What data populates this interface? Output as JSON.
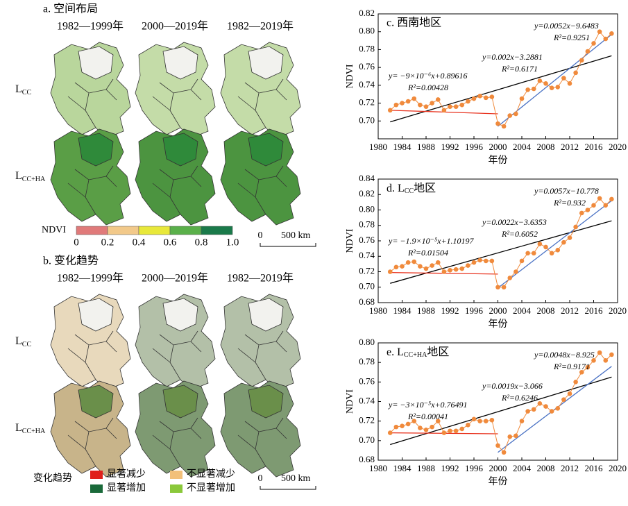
{
  "panel_a": {
    "title": "a. 空间布局",
    "columns": [
      "1982—1999年",
      "2000—2019年",
      "1982—2019年"
    ],
    "rows": [
      {
        "text": "L",
        "sub": "CC"
      },
      {
        "text": "L",
        "sub": "CC+HA"
      }
    ],
    "colorbar": {
      "label": "NDVI",
      "colors": [
        "#e07a7a",
        "#f2c98a",
        "#e8e83a",
        "#5ab04a",
        "#1a7a4a"
      ],
      "ticks": [
        0,
        0.2,
        0.4,
        0.6,
        0.8,
        {
          "value": 1,
          "label": "1.0"
        }
      ]
    },
    "scalebar": {
      "start": 0,
      "label": "500 km"
    }
  },
  "panel_b": {
    "title": "b. 变化趋势",
    "columns": [
      "1982—1999年",
      "2000—2019年",
      "1982—2019年"
    ],
    "rows": [
      {
        "text": "L",
        "sub": "CC"
      },
      {
        "text": "L",
        "sub": "CC+HA"
      }
    ],
    "legend": {
      "title": "变化趋势",
      "items": [
        {
          "label": "显著减少",
          "color": "#e0201a"
        },
        {
          "label": "不显著减少",
          "color": "#f2c07a"
        },
        {
          "label": "显著增加",
          "color": "#1a6a3a"
        },
        {
          "label": "不显著增加",
          "color": "#8ac83a"
        }
      ]
    },
    "scalebar": {
      "start": 0,
      "label": "500 km"
    }
  },
  "chart_data": [
    {
      "type": "line",
      "title": "c. 西南地区",
      "xlabel": "年份",
      "ylabel": "NDVI",
      "x": [
        1982,
        1983,
        1984,
        1985,
        1986,
        1987,
        1988,
        1989,
        1990,
        1991,
        1992,
        1993,
        1994,
        1995,
        1996,
        1997,
        1998,
        1999,
        2000,
        2001,
        2002,
        2003,
        2004,
        2005,
        2006,
        2007,
        2008,
        2009,
        2010,
        2011,
        2012,
        2013,
        2014,
        2015,
        2016,
        2017,
        2018,
        2019
      ],
      "xlim": [
        1980,
        2020
      ],
      "xticks": [
        1980,
        1984,
        1988,
        1992,
        1996,
        2000,
        2004,
        2008,
        2012,
        2016,
        2020
      ],
      "ylim": [
        0.68,
        0.82
      ],
      "yticks": [
        {
          "value": 0.7,
          "label": "0.70"
        },
        0.72,
        0.74,
        0.76,
        0.78,
        {
          "value": 0.8,
          "label": "0.80"
        },
        0.82
      ],
      "series": [
        {
          "color": "#f08a3c",
          "values": [
            0.712,
            0.718,
            0.72,
            0.722,
            0.725,
            0.718,
            0.716,
            0.72,
            0.724,
            0.712,
            0.716,
            0.716,
            0.718,
            0.722,
            0.725,
            0.728,
            0.726,
            0.727,
            0.697,
            0.694,
            0.706,
            0.708,
            0.725,
            0.735,
            0.736,
            0.745,
            0.742,
            0.737,
            0.738,
            0.748,
            0.742,
            0.754,
            0.768,
            0.778,
            0.787,
            0.8,
            0.792,
            0.798
          ]
        }
      ],
      "trends": [
        {
          "color": "#000000",
          "x": [
            1982,
            2019
          ],
          "values": [
            0.699,
            0.773
          ]
        },
        {
          "color": "#e8321e",
          "x": [
            1982,
            2000
          ],
          "values": [
            0.712,
            0.708
          ]
        },
        {
          "color": "#4a72c4",
          "x": [
            2000,
            2019
          ],
          "values": [
            0.694,
            0.797
          ]
        }
      ],
      "annotations": [
        {
          "color": "#e8321e",
          "lines": [
            "y= −9×10⁻⁶x+0.89616",
            "R²=0.00428"
          ]
        },
        {
          "color": "#000000",
          "lines": [
            "y=0.002x−3.2881",
            "R²=0.6171"
          ]
        },
        {
          "color": "#4a72c4",
          "lines": [
            "y=0.0052x−9.6483",
            "R²=0.9251"
          ]
        }
      ]
    },
    {
      "type": "line",
      "title": {
        "text": "d. L",
        "sub": "CC",
        "tail": "地区"
      },
      "xlabel": "年份",
      "ylabel": "NDVI",
      "x": [
        1982,
        1983,
        1984,
        1985,
        1986,
        1987,
        1988,
        1989,
        1990,
        1991,
        1992,
        1993,
        1994,
        1995,
        1996,
        1997,
        1998,
        1999,
        2000,
        2001,
        2002,
        2003,
        2004,
        2005,
        2006,
        2007,
        2008,
        2009,
        2010,
        2011,
        2012,
        2013,
        2014,
        2015,
        2016,
        2017,
        2018,
        2019
      ],
      "xlim": [
        1980,
        2020
      ],
      "xticks": [
        1980,
        1984,
        1988,
        1992,
        1996,
        2000,
        2004,
        2008,
        2012,
        2016,
        2020
      ],
      "ylim": [
        0.68,
        0.84
      ],
      "yticks": [
        0.68,
        {
          "value": 0.7,
          "label": "0.70"
        },
        0.72,
        0.74,
        0.76,
        0.78,
        {
          "value": 0.8,
          "label": "0.80"
        },
        0.82,
        0.84
      ],
      "series": [
        {
          "color": "#f08a3c",
          "values": [
            0.72,
            0.726,
            0.727,
            0.732,
            0.733,
            0.727,
            0.724,
            0.728,
            0.732,
            0.72,
            0.722,
            0.723,
            0.724,
            0.728,
            0.732,
            0.735,
            0.734,
            0.734,
            0.7,
            0.7,
            0.712,
            0.72,
            0.734,
            0.744,
            0.744,
            0.756,
            0.752,
            0.744,
            0.748,
            0.758,
            0.764,
            0.778,
            0.796,
            0.8,
            0.806,
            0.815,
            0.806,
            0.814
          ]
        }
      ],
      "trends": [
        {
          "color": "#000000",
          "x": [
            1982,
            2019
          ],
          "values": [
            0.705,
            0.786
          ]
        },
        {
          "color": "#e8321e",
          "x": [
            1982,
            2000
          ],
          "values": [
            0.719,
            0.717
          ]
        },
        {
          "color": "#4a72c4",
          "x": [
            2000,
            2019
          ],
          "values": [
            0.699,
            0.812
          ]
        }
      ],
      "annotations": [
        {
          "color": "#e8321e",
          "lines": [
            "y= −1.9×10⁻⁵x+1.10197",
            "R²=0.01504"
          ]
        },
        {
          "color": "#000000",
          "lines": [
            "y=0.0022x−3.6353",
            "R²=0.6052"
          ]
        },
        {
          "color": "#4a72c4",
          "lines": [
            "y=0.0057x−10.778",
            "R²=0.932"
          ]
        }
      ]
    },
    {
      "type": "line",
      "title": {
        "text": "e. L",
        "sub": "CC+HA",
        "tail": "地区"
      },
      "xlabel": "年份",
      "ylabel": "NDVI",
      "x": [
        1982,
        1983,
        1984,
        1985,
        1986,
        1987,
        1988,
        1989,
        1990,
        1991,
        1992,
        1993,
        1994,
        1995,
        1996,
        1997,
        1998,
        1999,
        2000,
        2001,
        2002,
        2003,
        2004,
        2005,
        2006,
        2007,
        2008,
        2009,
        2010,
        2011,
        2012,
        2013,
        2014,
        2015,
        2016,
        2017,
        2018,
        2019
      ],
      "xlim": [
        1980,
        2020
      ],
      "xticks": [
        1980,
        1984,
        1988,
        1992,
        1996,
        2000,
        2004,
        2008,
        2012,
        2016,
        2020
      ],
      "ylim": [
        0.68,
        0.8
      ],
      "yticks": [
        0.68,
        {
          "value": 0.7,
          "label": "0.70"
        },
        0.72,
        0.74,
        0.76,
        0.78,
        {
          "value": 0.8,
          "label": "0.80"
        }
      ],
      "series": [
        {
          "color": "#f08a3c",
          "values": [
            0.708,
            0.714,
            0.715,
            0.717,
            0.72,
            0.713,
            0.711,
            0.714,
            0.72,
            0.708,
            0.71,
            0.71,
            0.712,
            0.716,
            0.722,
            0.72,
            0.72,
            0.721,
            0.695,
            0.688,
            0.704,
            0.705,
            0.72,
            0.73,
            0.732,
            0.738,
            0.735,
            0.73,
            0.733,
            0.742,
            0.748,
            0.76,
            0.77,
            0.775,
            0.782,
            0.79,
            0.782,
            0.788
          ]
        }
      ],
      "trends": [
        {
          "color": "#000000",
          "x": [
            1982,
            2019
          ],
          "values": [
            0.696,
            0.765
          ]
        },
        {
          "color": "#e8321e",
          "x": [
            1982,
            2000
          ],
          "values": [
            0.708,
            0.707
          ]
        },
        {
          "color": "#4a72c4",
          "x": [
            2000,
            2019
          ],
          "values": [
            0.688,
            0.776
          ]
        }
      ],
      "annotations": [
        {
          "color": "#e8321e",
          "lines": [
            "y= −3×10⁻⁵x+0.76491",
            "R²=0.00041"
          ]
        },
        {
          "color": "#000000",
          "lines": [
            "y=0.0019x−3.066",
            "R²=0.6246"
          ]
        },
        {
          "color": "#4a72c4",
          "lines": [
            "y=0.0048x−8.925",
            "R²=0.9171"
          ]
        }
      ]
    }
  ]
}
